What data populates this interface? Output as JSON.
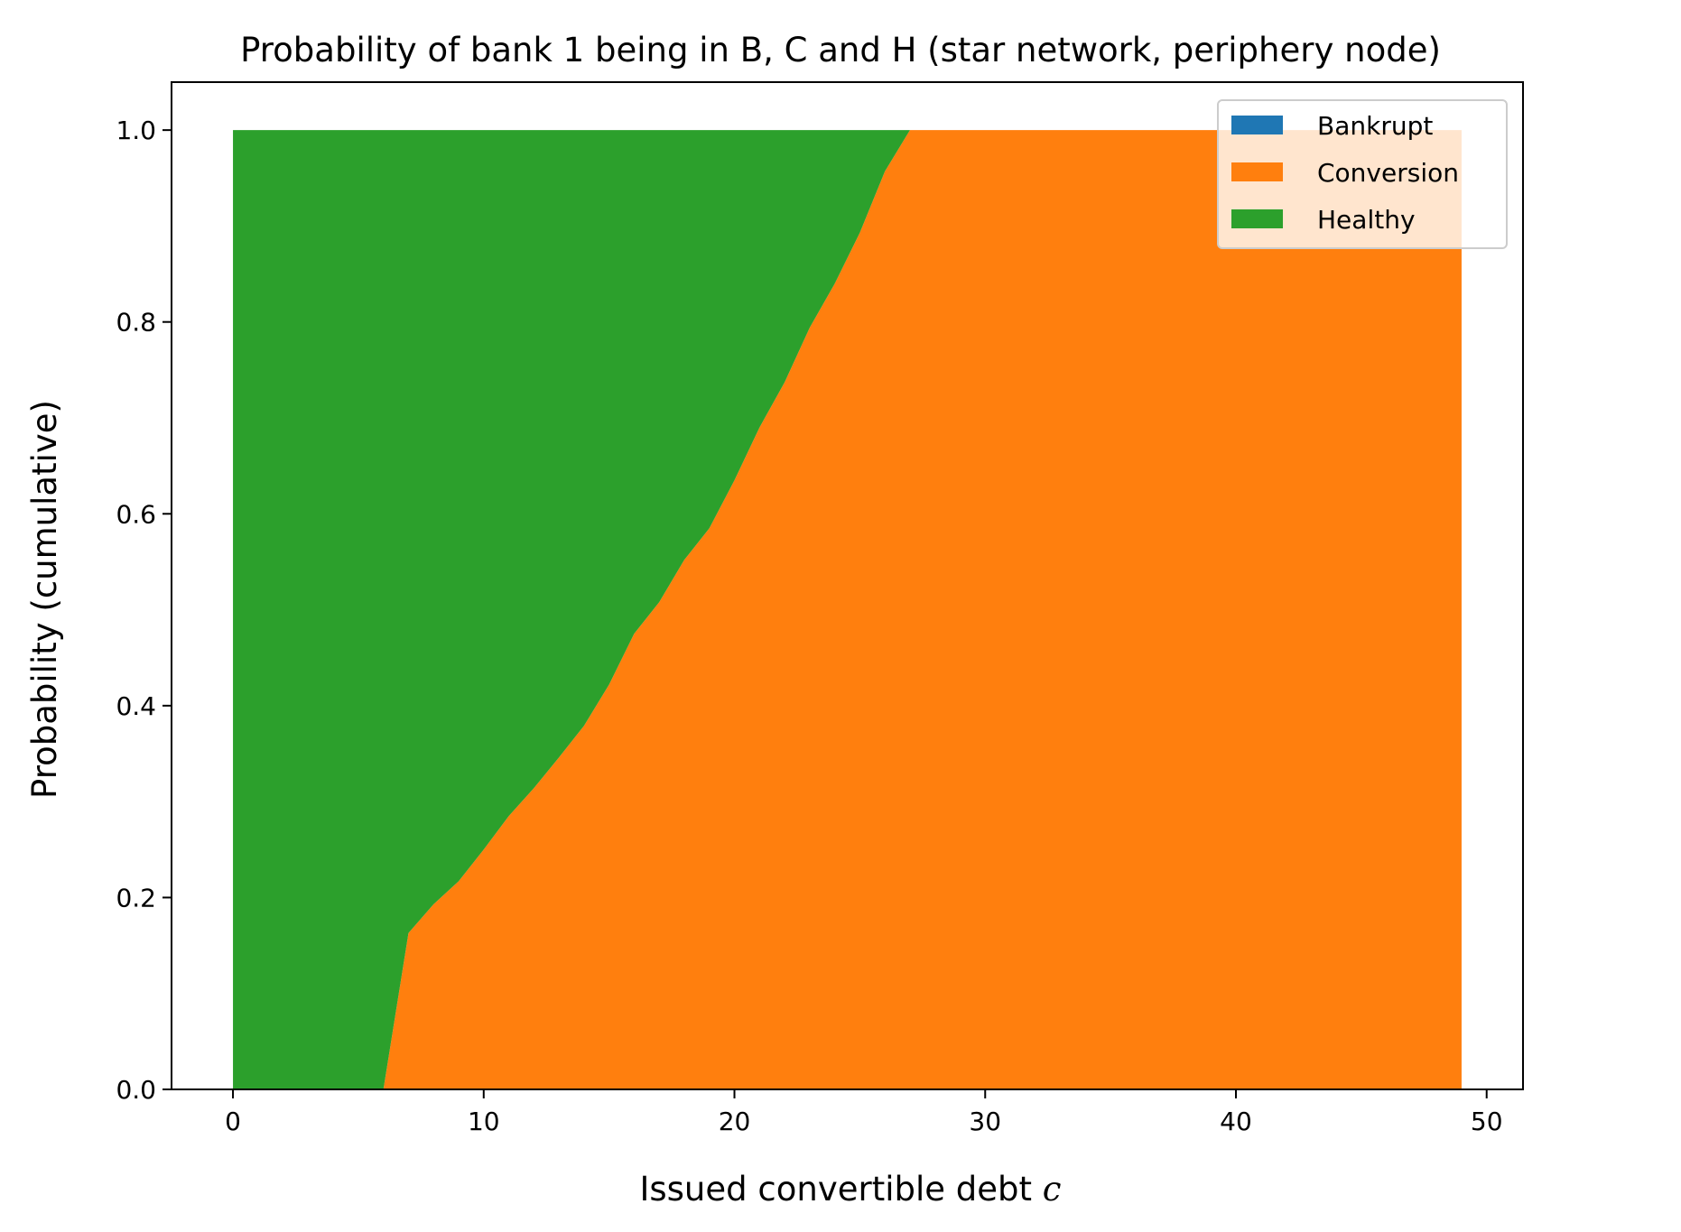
{
  "chart_data": {
    "type": "area",
    "stacked": true,
    "title": "Probability of bank 1 being in B, C and H (star network, periphery node)",
    "xlabel_text": "Issued convertible debt ",
    "xlabel_var": "c",
    "ylabel": "Probability (cumulative)",
    "xlim": [
      -2.45,
      51.45
    ],
    "ylim": [
      0,
      1.05
    ],
    "xticks": [
      0,
      10,
      20,
      30,
      40,
      50
    ],
    "yticks": [
      0.0,
      0.2,
      0.4,
      0.6,
      0.8,
      1.0
    ],
    "xtick_labels": [
      "0",
      "10",
      "20",
      "30",
      "40",
      "50"
    ],
    "ytick_labels": [
      "0.0",
      "0.2",
      "0.4",
      "0.6",
      "0.8",
      "1.0"
    ],
    "legend_position": "upper-right",
    "x": [
      0,
      1,
      2,
      3,
      4,
      5,
      6,
      7,
      8,
      9,
      10,
      11,
      12,
      13,
      14,
      15,
      16,
      17,
      18,
      19,
      20,
      21,
      22,
      23,
      24,
      25,
      26,
      27,
      28,
      29,
      30,
      31,
      32,
      33,
      34,
      35,
      36,
      37,
      38,
      39,
      40,
      41,
      42,
      43,
      44,
      45,
      46,
      47,
      48,
      49
    ],
    "series": [
      {
        "name": "Bankrupt",
        "color": "#1f77b4",
        "values": [
          0,
          0,
          0,
          0,
          0,
          0,
          0,
          0,
          0,
          0,
          0,
          0,
          0,
          0,
          0,
          0,
          0,
          0,
          0,
          0,
          0,
          0,
          0,
          0,
          0,
          0,
          0,
          0,
          0,
          0,
          0,
          0,
          0,
          0,
          0,
          0,
          0,
          0,
          0,
          0,
          0,
          0,
          0,
          0,
          0,
          0,
          0,
          0,
          0,
          0
        ]
      },
      {
        "name": "Conversion",
        "color": "#ff7f0e",
        "values": [
          0,
          0,
          0,
          0,
          0,
          0,
          0,
          0.163,
          0.193,
          0.217,
          0.25,
          0.285,
          0.314,
          0.346,
          0.379,
          0.422,
          0.475,
          0.508,
          0.552,
          0.585,
          0.635,
          0.69,
          0.737,
          0.794,
          0.84,
          0.893,
          0.957,
          1,
          1,
          1,
          1,
          1,
          1,
          1,
          1,
          1,
          1,
          1,
          1,
          1,
          1,
          1,
          1,
          1,
          1,
          1,
          1,
          1,
          1,
          1
        ]
      },
      {
        "name": "Healthy",
        "color": "#2ca02c",
        "values": [
          1,
          1,
          1,
          1,
          1,
          1,
          1,
          0.837,
          0.807,
          0.783,
          0.75,
          0.715,
          0.686,
          0.654,
          0.621,
          0.578,
          0.525,
          0.492,
          0.448,
          0.415,
          0.365,
          0.31,
          0.263,
          0.206,
          0.16,
          0.107,
          0.043,
          0,
          0,
          0,
          0,
          0,
          0,
          0,
          0,
          0,
          0,
          0,
          0,
          0,
          0,
          0,
          0,
          0,
          0,
          0,
          0,
          0,
          0,
          0
        ]
      }
    ]
  }
}
